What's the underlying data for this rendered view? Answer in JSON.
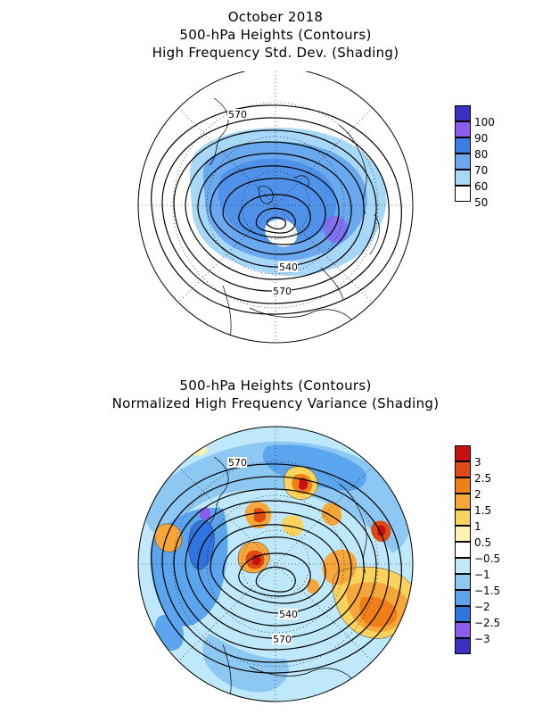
{
  "top_panel": {
    "title_lines": [
      "October 2018",
      "500-hPa Heights (Contours)",
      "High Frequency Std. Dev. (Shading)"
    ],
    "contour_labels": [
      "570",
      "540",
      "570"
    ],
    "colorbar": {
      "labels": [
        "100",
        "90",
        "80",
        "70",
        "60",
        "50"
      ],
      "colors": [
        "#3b2fc6",
        "#8a5df0",
        "#3a7fe6",
        "#6aa8f0",
        "#a7d8f7",
        "#ffffff"
      ]
    }
  },
  "bottom_panel": {
    "title_lines": [
      "500-hPa Heights (Contours)",
      "Normalized High Frequency Variance (Shading)"
    ],
    "contour_labels": [
      "570",
      "540",
      "570"
    ],
    "colorbar": {
      "labels": [
        "3",
        "2.5",
        "2",
        "1.5",
        "1",
        "0.5",
        "−0.5",
        "−1",
        "−1.5",
        "−2",
        "−2.5",
        "−3"
      ],
      "colors": [
        "#c8100f",
        "#e04a14",
        "#f07f17",
        "#f7a73a",
        "#fbd25c",
        "#fdf3b0",
        "#ffffff",
        "#bfe9fa",
        "#8dc8f3",
        "#5aa5ee",
        "#2f74e0",
        "#8a5df0",
        "#3b2fc6"
      ]
    }
  }
}
